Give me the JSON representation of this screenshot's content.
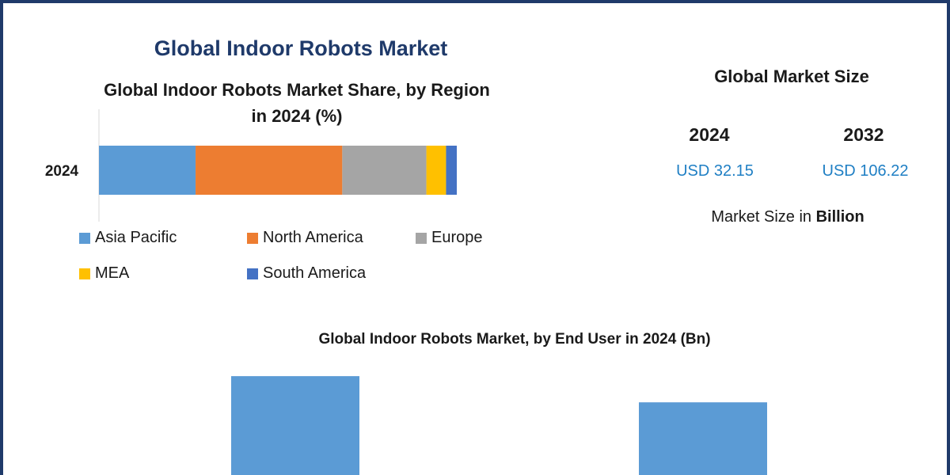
{
  "main_title": "Global Indoor Robots Market",
  "market_size": {
    "title": "Global Market Size",
    "years": [
      "2024",
      "2032"
    ],
    "values": [
      "USD 32.15",
      "USD 106.22"
    ],
    "unit_prefix": "Market Size in ",
    "unit_bold": "Billion"
  },
  "colors": {
    "title": "#1f3a6a",
    "value_text": "#1f7fc4"
  },
  "chart_data": [
    {
      "type": "bar",
      "orientation": "horizontal-stacked",
      "title": "Global Indoor Robots Market Share, by Region in 2024 (%)",
      "categories": [
        "2024"
      ],
      "series": [
        {
          "name": "Asia Pacific",
          "values": [
            27
          ],
          "color": "#5b9bd5"
        },
        {
          "name": "North America",
          "values": [
            41
          ],
          "color": "#ed7d31"
        },
        {
          "name": "Europe",
          "values": [
            23.5
          ],
          "color": "#a5a5a5"
        },
        {
          "name": "MEA",
          "values": [
            5.5
          ],
          "color": "#ffc000"
        },
        {
          "name": "South America",
          "values": [
            3
          ],
          "color": "#4472c4"
        }
      ],
      "xlim": [
        0,
        100
      ],
      "legend": "bottom"
    },
    {
      "type": "bar",
      "title": "Global Indoor Robots Market, by End User in 2024 (Bn)",
      "categories": [
        "",
        ""
      ],
      "values": [
        18.5,
        13.6
      ],
      "color": "#5b9bd5",
      "ylim": [
        0,
        20
      ]
    }
  ]
}
